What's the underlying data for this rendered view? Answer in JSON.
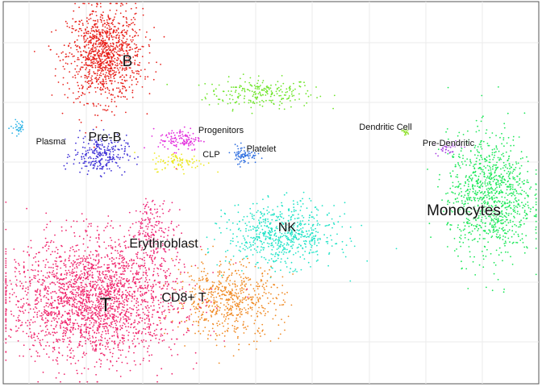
{
  "chart_data": {
    "type": "scatter",
    "title": "",
    "xlabel": "",
    "ylabel": "",
    "grid": true,
    "axis_ticks_shown": false,
    "legend": "none",
    "clusters": [
      {
        "name": "B",
        "color": "#e8221c",
        "label_size": "large",
        "cx": 0.19,
        "cy": 0.86,
        "sx": 0.035,
        "sy": 0.06,
        "n": 1100
      },
      {
        "name": "Pre-B",
        "color": "#3d2fd6",
        "label_size": "medium",
        "cx": 0.18,
        "cy": 0.6,
        "sx": 0.025,
        "sy": 0.025,
        "n": 260
      },
      {
        "name": "Plasma",
        "color": "#2bb3e6",
        "label_size": "small",
        "cx": 0.03,
        "cy": 0.67,
        "sx": 0.008,
        "sy": 0.01,
        "n": 30
      },
      {
        "name": "Progenitors",
        "color": "#e22bdc",
        "label_size": "small",
        "cx": 0.33,
        "cy": 0.64,
        "sx": 0.02,
        "sy": 0.015,
        "n": 120
      },
      {
        "name": "CLP",
        "color": "#ece81f",
        "label_size": "small",
        "cx": 0.33,
        "cy": 0.58,
        "sx": 0.025,
        "sy": 0.012,
        "n": 90
      },
      {
        "name": "Platelet",
        "color": "#2f6fe0",
        "label_size": "small",
        "cx": 0.45,
        "cy": 0.6,
        "sx": 0.012,
        "sy": 0.012,
        "n": 80
      },
      {
        "name": "Dendritic Cell",
        "color": "#8fe02b",
        "label_size": "small",
        "cx": 0.75,
        "cy": 0.66,
        "sx": 0.004,
        "sy": 0.006,
        "n": 20
      },
      {
        "name": "Pre-Dendritic",
        "color": "#a53ce0",
        "label_size": "small",
        "cx": 0.83,
        "cy": 0.62,
        "sx": 0.012,
        "sy": 0.01,
        "n": 40
      },
      {
        "name": "Monocytes",
        "color": "#1ee85a",
        "label_size": "large",
        "cx": 0.91,
        "cy": 0.49,
        "sx": 0.04,
        "sy": 0.08,
        "n": 1000
      },
      {
        "name": "NK",
        "color": "#22e3c7",
        "label_size": "medium",
        "cx": 0.52,
        "cy": 0.39,
        "sx": 0.05,
        "sy": 0.04,
        "n": 650
      },
      {
        "name": "Erythroblast",
        "color": "#ee2a7b",
        "label_size": "medium",
        "cx": 0.28,
        "cy": 0.4,
        "sx": 0.02,
        "sy": 0.04,
        "n": 180
      },
      {
        "name": "CD8+ T",
        "color": "#f08a24",
        "label_size": "medium",
        "cx": 0.42,
        "cy": 0.22,
        "sx": 0.05,
        "sy": 0.05,
        "n": 600
      },
      {
        "name": "T",
        "color": "#f0286e",
        "label_size": "xlarge",
        "cx": 0.17,
        "cy": 0.22,
        "sx": 0.08,
        "sy": 0.08,
        "n": 2400
      }
    ],
    "extra_groups": [
      {
        "color": "#6fe52a",
        "cx": 0.48,
        "cy": 0.76,
        "sx": 0.05,
        "sy": 0.02,
        "n": 230
      }
    ]
  }
}
